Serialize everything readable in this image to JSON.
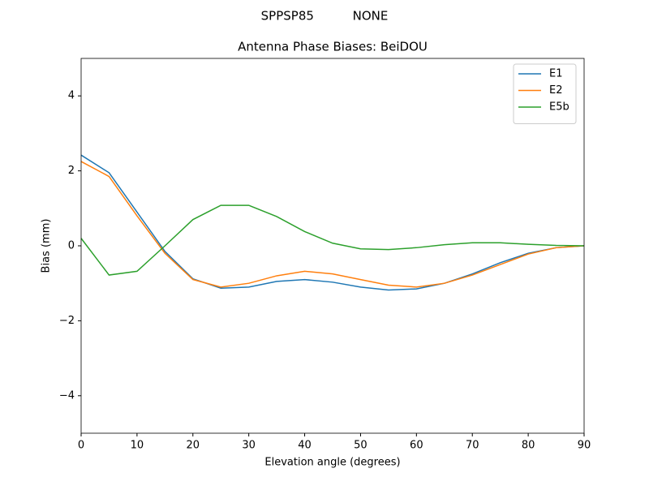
{
  "chart_data": {
    "type": "line",
    "suptitle": "SPPSP85          NONE",
    "title": "Antenna Phase Biases: BeiDOU",
    "x_label": "Elevation angle (degrees)",
    "y_label": "Bias (mm)",
    "x": [
      0,
      5,
      10,
      15,
      20,
      25,
      30,
      35,
      40,
      45,
      50,
      55,
      60,
      65,
      70,
      75,
      80,
      85,
      90
    ],
    "series": [
      {
        "name": "E1",
        "color": "#1f77b4",
        "values": [
          2.42,
          1.95,
          0.9,
          -0.15,
          -0.88,
          -1.13,
          -1.1,
          -0.95,
          -0.9,
          -0.97,
          -1.1,
          -1.18,
          -1.15,
          -1.0,
          -0.75,
          -0.45,
          -0.2,
          -0.05,
          0
        ]
      },
      {
        "name": "E2",
        "color": "#ff7f0e",
        "values": [
          2.25,
          1.85,
          0.8,
          -0.2,
          -0.9,
          -1.1,
          -1.0,
          -0.8,
          -0.68,
          -0.75,
          -0.9,
          -1.05,
          -1.1,
          -1.0,
          -0.78,
          -0.5,
          -0.22,
          -0.05,
          0
        ]
      },
      {
        "name": "E5b",
        "color": "#2ca02c",
        "values": [
          0.2,
          -0.78,
          -0.68,
          0.0,
          0.7,
          1.08,
          1.08,
          0.78,
          0.38,
          0.07,
          -0.08,
          -0.1,
          -0.05,
          0.03,
          0.08,
          0.08,
          0.04,
          0.01,
          0
        ]
      }
    ],
    "xlim": [
      0,
      90
    ],
    "xticks": [
      0,
      10,
      20,
      30,
      40,
      50,
      60,
      70,
      80,
      90
    ],
    "ylim": [
      -5,
      5
    ],
    "yticks": [
      {
        "value": -4,
        "label": "−4"
      },
      {
        "value": -2,
        "label": "−2"
      },
      0,
      2,
      4
    ],
    "grid": false,
    "legend": "upper right"
  }
}
